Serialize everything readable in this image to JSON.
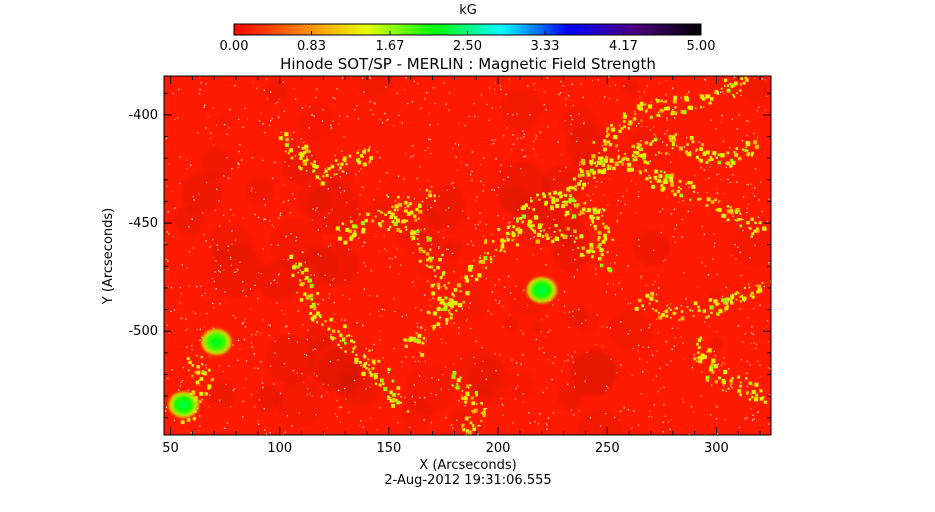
{
  "chart_data": {
    "type": "heatmap",
    "title": "Hinode SOT/SP - MERLIN : Magnetic Field Strength",
    "xlabel": "X (Arcseconds)",
    "ylabel": "Y (Arcseconds)",
    "timestamp": "2-Aug-2012 19:31:06.555",
    "xlim": [
      47,
      325
    ],
    "ylim": [
      -548,
      -382
    ],
    "x_ticks": [
      "50",
      "100",
      "150",
      "200",
      "250",
      "300"
    ],
    "x_tick_values": [
      50,
      100,
      150,
      200,
      250,
      300
    ],
    "y_ticks": [
      "-400",
      "-450",
      "-500"
    ],
    "y_tick_values": [
      -400,
      -450,
      -500
    ],
    "colorbar": {
      "label": "kG",
      "range": [
        0,
        5
      ],
      "ticks": [
        "0.00",
        "0.83",
        "1.67",
        "2.50",
        "3.33",
        "4.17",
        "5.00"
      ],
      "tick_values": [
        0,
        0.83,
        1.67,
        2.5,
        3.33,
        4.17,
        5.0
      ],
      "colors": [
        "#ff0000",
        "#ff7f00",
        "#e6ff00",
        "#00ff00",
        "#00ffff",
        "#0000ff",
        "#4b0082",
        "#000000"
      ]
    },
    "background_level_kG": 0.0,
    "network_level_kG": 1.35,
    "strong_spots": [
      {
        "x": 220,
        "y": -481,
        "value_kG": 2.1
      },
      {
        "x": 71,
        "y": -505,
        "value_kG": 2.0
      },
      {
        "x": 56,
        "y": -534,
        "value_kG": 2.1
      }
    ],
    "network_paths": [
      [
        [
          105,
          -465
        ],
        [
          110,
          -478
        ],
        [
          118,
          -492
        ],
        [
          130,
          -506
        ],
        [
          145,
          -520
        ],
        [
          155,
          -535
        ]
      ],
      [
        [
          128,
          -455
        ],
        [
          145,
          -447
        ],
        [
          162,
          -452
        ],
        [
          170,
          -468
        ],
        [
          175,
          -490
        ],
        [
          160,
          -507
        ]
      ],
      [
        [
          175,
          -490
        ],
        [
          195,
          -462
        ],
        [
          210,
          -452
        ],
        [
          232,
          -456
        ],
        [
          248,
          -468
        ]
      ],
      [
        [
          210,
          -452
        ],
        [
          218,
          -438
        ],
        [
          230,
          -440
        ],
        [
          245,
          -446
        ],
        [
          250,
          -465
        ]
      ],
      [
        [
          225,
          -442
        ],
        [
          240,
          -426
        ],
        [
          258,
          -418
        ],
        [
          275,
          -430
        ],
        [
          300,
          -440
        ],
        [
          320,
          -452
        ]
      ],
      [
        [
          240,
          -426
        ],
        [
          252,
          -408
        ],
        [
          268,
          -396
        ],
        [
          290,
          -394
        ],
        [
          312,
          -385
        ]
      ],
      [
        [
          258,
          -418
        ],
        [
          280,
          -412
        ],
        [
          300,
          -420
        ],
        [
          318,
          -414
        ]
      ],
      [
        [
          150,
          -440
        ],
        [
          158,
          -445
        ],
        [
          168,
          -436
        ]
      ],
      [
        [
          265,
          -485
        ],
        [
          285,
          -492
        ],
        [
          305,
          -486
        ],
        [
          322,
          -480
        ]
      ],
      [
        [
          60,
          -510
        ],
        [
          65,
          -522
        ],
        [
          58,
          -540
        ]
      ],
      [
        [
          290,
          -505
        ],
        [
          300,
          -520
        ],
        [
          320,
          -530
        ]
      ],
      [
        [
          180,
          -520
        ],
        [
          190,
          -535
        ],
        [
          185,
          -548
        ]
      ],
      [
        [
          100,
          -410
        ],
        [
          118,
          -428
        ],
        [
          140,
          -418
        ]
      ]
    ]
  }
}
